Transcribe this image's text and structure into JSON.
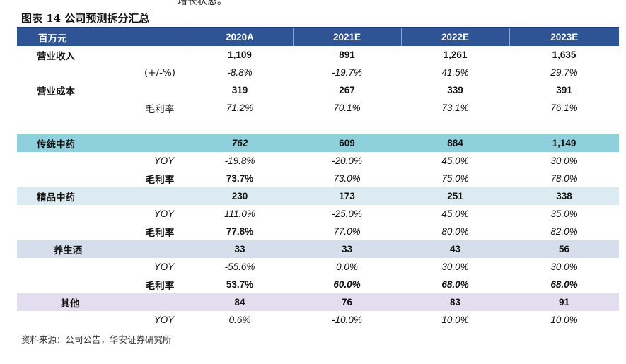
{
  "top_fragment": "增长状态。",
  "figure_title": "图表 14  公司预测拆分汇总",
  "table": {
    "headers": [
      "百万元",
      "2020A",
      "2021E",
      "2022E",
      "2023E"
    ],
    "rows": [
      {
        "label": "营业收入",
        "sub": "",
        "values": [
          "1,109",
          "891",
          "1,261",
          "1,635"
        ]
      },
      {
        "label": "",
        "sub": "(+/-%)",
        "values": [
          "-8.8%",
          "-19.7%",
          "41.5%",
          "29.7%"
        ]
      },
      {
        "label": "营业成本",
        "sub": "",
        "values": [
          "319",
          "267",
          "339",
          "391"
        ]
      },
      {
        "label": "",
        "sub": "毛利率",
        "values": [
          "71.2%",
          "70.1%",
          "73.1%",
          "76.1%"
        ]
      },
      {
        "label": "传统中药",
        "sub": "",
        "values": [
          "762",
          "609",
          "884",
          "1,149"
        ]
      },
      {
        "label": "",
        "sub": "YOY",
        "values": [
          "-19.8%",
          "-20.0%",
          "45.0%",
          "30.0%"
        ]
      },
      {
        "label": "",
        "sub": "毛利率",
        "values": [
          "73.7%",
          "73.0%",
          "75.0%",
          "78.0%"
        ]
      },
      {
        "label": "精品中药",
        "sub": "",
        "values": [
          "230",
          "173",
          "251",
          "338"
        ]
      },
      {
        "label": "",
        "sub": "YOY",
        "values": [
          "111.0%",
          "-25.0%",
          "45.0%",
          "35.0%"
        ]
      },
      {
        "label": "",
        "sub": "毛利率",
        "values": [
          "77.8%",
          "77.0%",
          "80.0%",
          "82.0%"
        ]
      },
      {
        "label": "养生酒",
        "sub": "",
        "values": [
          "33",
          "33",
          "43",
          "56"
        ]
      },
      {
        "label": "",
        "sub": "YOY",
        "values": [
          "-55.6%",
          "0.0%",
          "30.0%",
          "30.0%"
        ]
      },
      {
        "label": "",
        "sub": "毛利率",
        "values": [
          "53.7%",
          "60.0%",
          "68.0%",
          "68.0%"
        ]
      },
      {
        "label": "其他",
        "sub": "",
        "values": [
          "84",
          "76",
          "83",
          "91"
        ]
      },
      {
        "label": "",
        "sub": "YOY",
        "values": [
          "0.6%",
          "-10.0%",
          "10.0%",
          "10.0%"
        ]
      }
    ]
  },
  "source_note": "资料来源：公司公告，华安证券研究所",
  "colors": {
    "header_bg": "#2f5496",
    "teal_row": "#8ed0dc",
    "light_row": "#dcebf1",
    "blue_row": "#d5deea",
    "lavender_row": "#e2def0"
  }
}
